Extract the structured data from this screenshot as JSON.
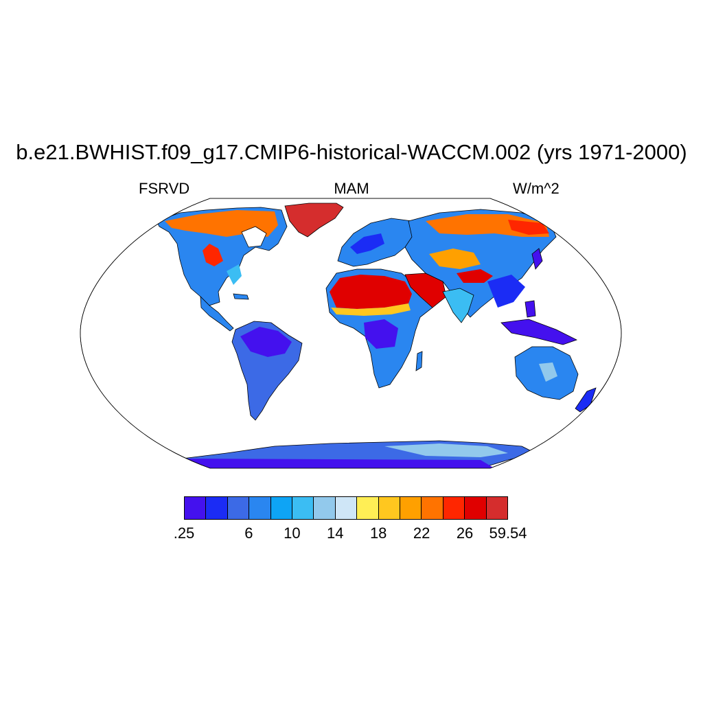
{
  "title": "b.e21.BWHIST.f09_g17.CMIP6-historical-WACCM.002 (yrs 1971-2000)",
  "variable": "FSRVD",
  "season": "MAM",
  "units": "W/m^2",
  "map": {
    "projection": "Robinson",
    "land_color_scale": "FSRVD field shown over land; oceans left white"
  },
  "colorbar": {
    "colors": [
      "#4411ee",
      "#1b2cf5",
      "#3c6ae6",
      "#2a86f0",
      "#0ea4f5",
      "#3bbdf3",
      "#92c9ec",
      "#cfe6f7",
      "#ffee55",
      "#ffc71f",
      "#ffa000",
      "#ff7300",
      "#ff2600",
      "#e00000",
      "#d52d2d"
    ],
    "labels": [
      {
        "text": ".25",
        "boundary": 0
      },
      {
        "text": "6",
        "boundary": 3
      },
      {
        "text": "10",
        "boundary": 5
      },
      {
        "text": "14",
        "boundary": 7
      },
      {
        "text": "18",
        "boundary": 9
      },
      {
        "text": "22",
        "boundary": 11
      },
      {
        "text": "26",
        "boundary": 13
      },
      {
        "text": "59.54",
        "boundary": 15
      }
    ]
  }
}
